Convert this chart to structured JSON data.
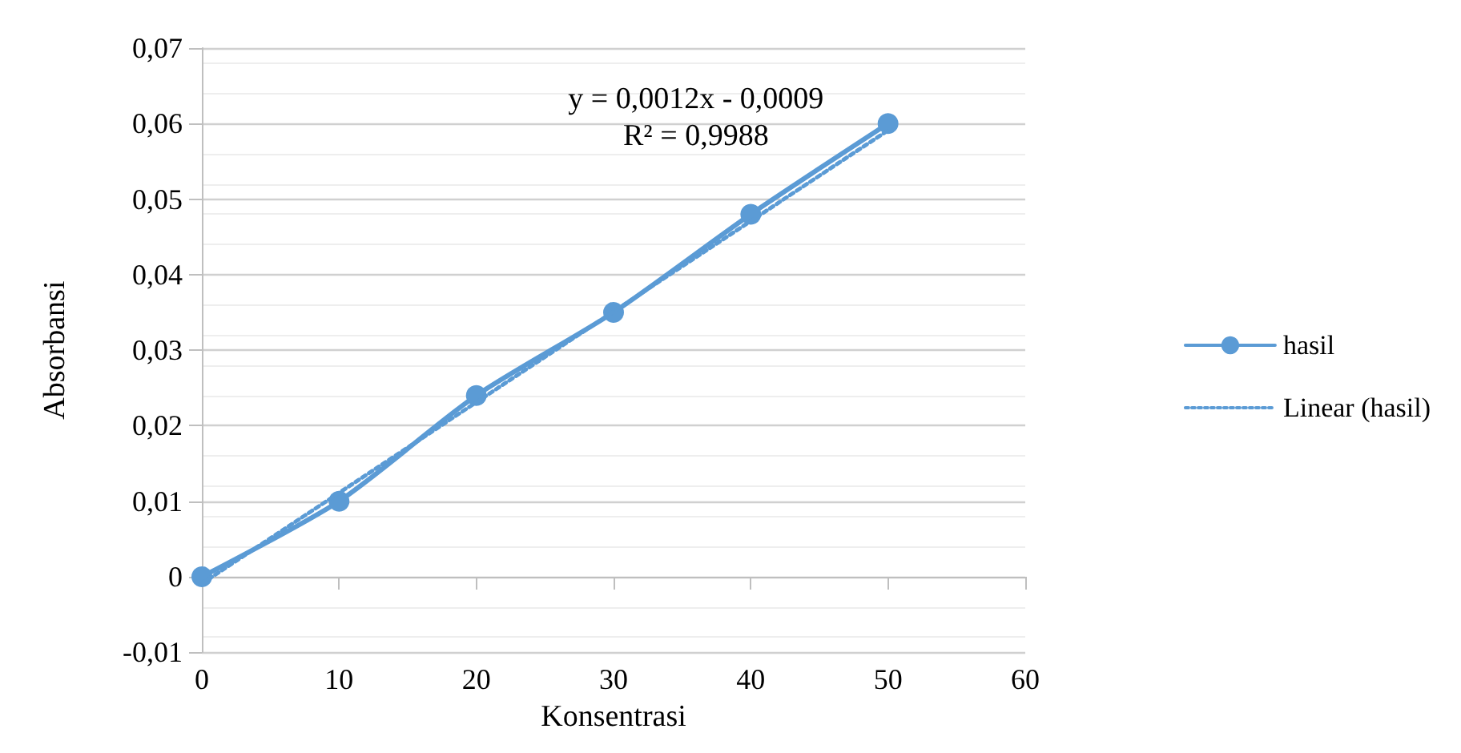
{
  "chart_data": {
    "type": "line",
    "xlabel": "Konsentrasi",
    "ylabel": "Absorbansi",
    "series": [
      {
        "name": "hasil",
        "color": "#5b9bd5",
        "x": [
          0,
          10,
          20,
          30,
          40,
          50
        ],
        "values": [
          0,
          0.01,
          0.024,
          0.035,
          0.048,
          0.06
        ],
        "marker": "circle",
        "line_style": "solid"
      },
      {
        "name": "Linear (hasil)",
        "color": "#5b9bd5",
        "x": [
          0,
          50
        ],
        "values": [
          -0.0009,
          0.0591
        ],
        "marker": "none",
        "line_style": "dotted"
      }
    ],
    "xlim": [
      0,
      60
    ],
    "xticks": [
      0,
      10,
      20,
      30,
      40,
      50,
      60
    ],
    "ylim": [
      -0.01,
      0.07
    ],
    "yticks": [
      {
        "value": -0.01,
        "label": "-0,01"
      },
      {
        "value": 0,
        "label": "0"
      },
      {
        "value": 0.01,
        "label": "0,01"
      },
      {
        "value": 0.02,
        "label": "0,02"
      },
      {
        "value": 0.03,
        "label": "0,03"
      },
      {
        "value": 0.04,
        "label": "0,04"
      },
      {
        "value": 0.05,
        "label": "0,05"
      },
      {
        "value": 0.06,
        "label": "0,06"
      },
      {
        "value": 0.07,
        "label": "0,07"
      }
    ],
    "annotations": [
      "y = 0,0012x - 0,0009",
      "R² = 0,9988"
    ],
    "grid": "y",
    "legend": "right"
  }
}
